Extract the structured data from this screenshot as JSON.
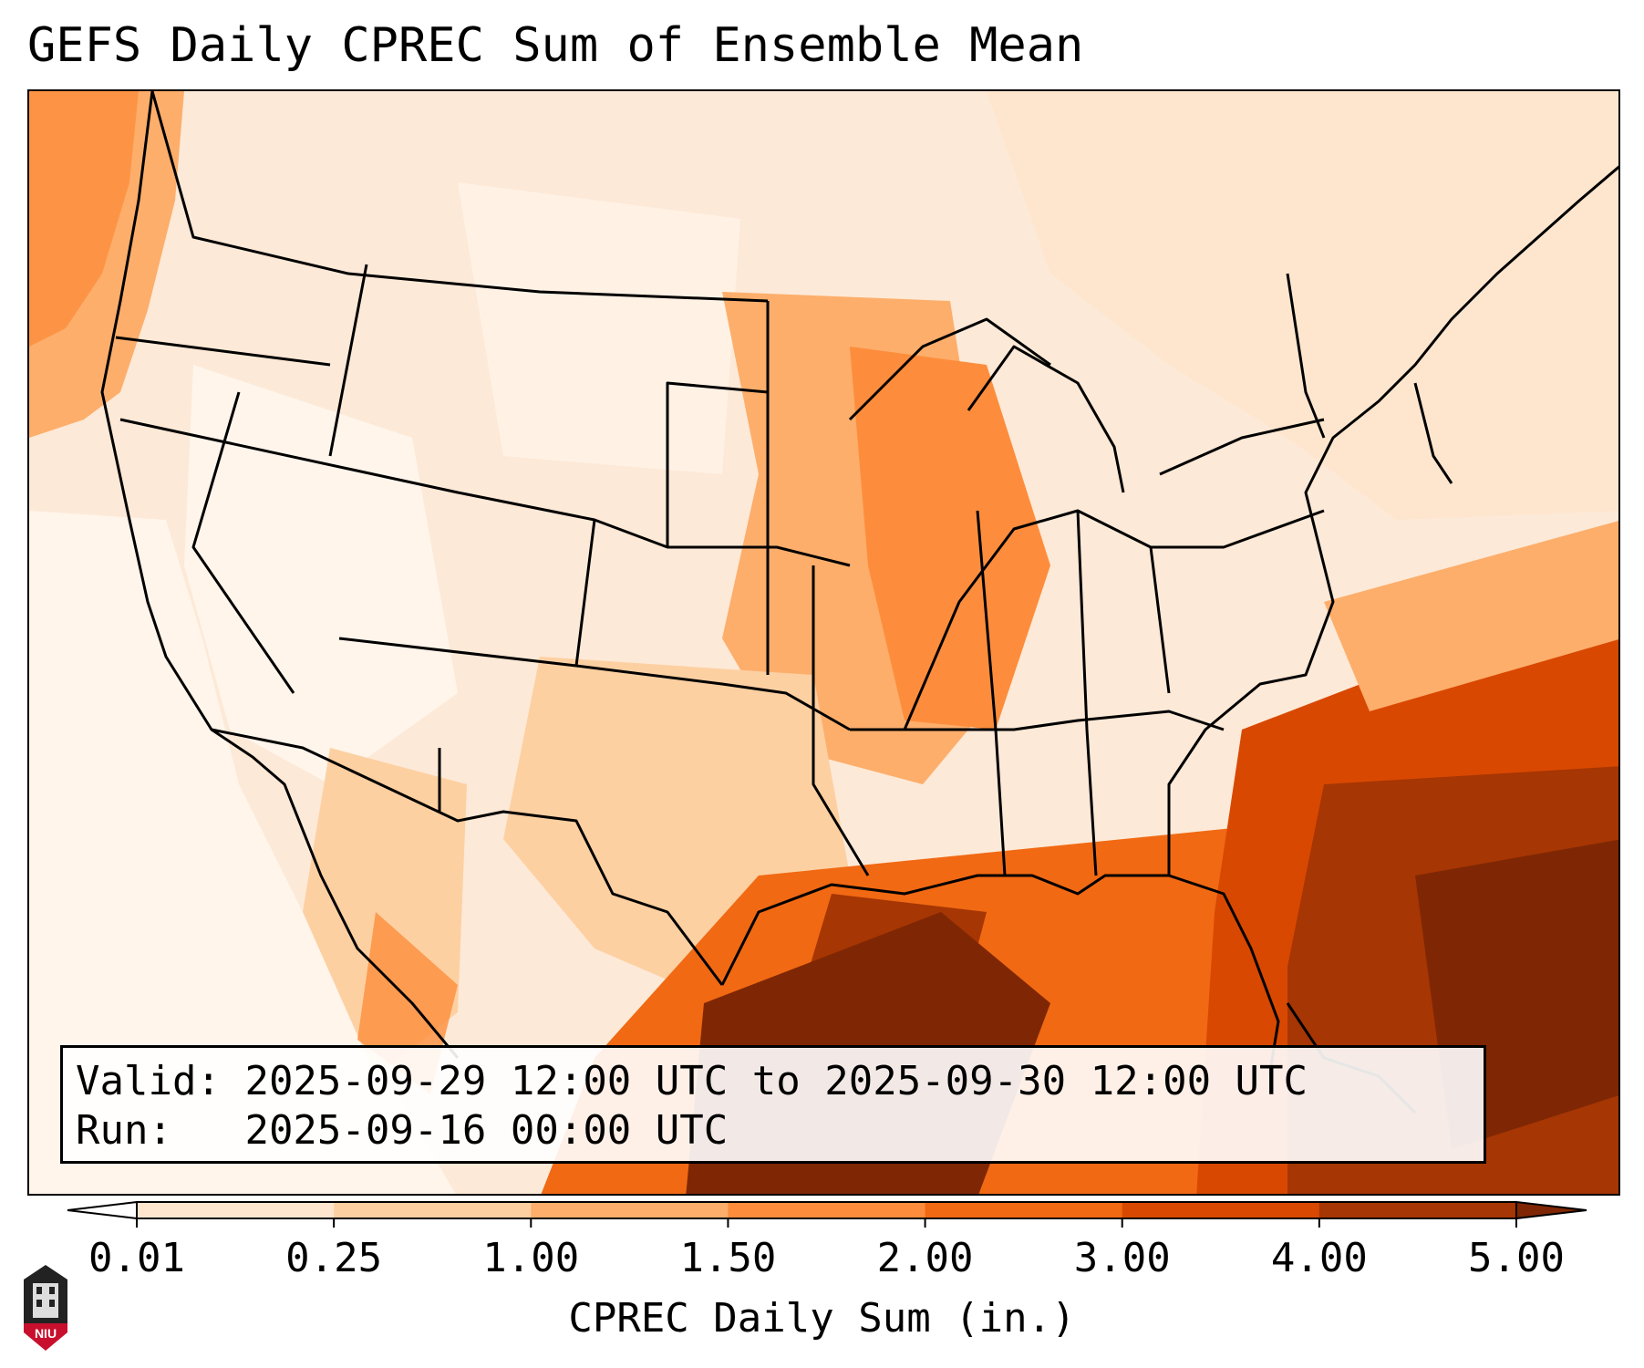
{
  "title": "GEFS Daily CPREC Sum of Ensemble Mean",
  "info": {
    "valid_label": "Valid:",
    "valid_value": "2025-09-29 12:00 UTC to 2025-09-30 12:00 UTC",
    "run_label": "Run:",
    "run_value": "2025-09-16 00:00 UTC"
  },
  "colorbar": {
    "label": "CPREC Daily Sum (in.)",
    "ticks": [
      "0.01",
      "0.25",
      "1.00",
      "1.50",
      "2.00",
      "3.00",
      "4.00",
      "5.00"
    ],
    "colors": [
      "#fff5eb",
      "#fee6ce",
      "#fdd0a2",
      "#fdae6b",
      "#fd8d3c",
      "#f16913",
      "#d94801",
      "#a63603"
    ],
    "under_color": "#ffffff",
    "over_color": "#7f2704"
  },
  "logo": {
    "text": "NIU"
  }
}
